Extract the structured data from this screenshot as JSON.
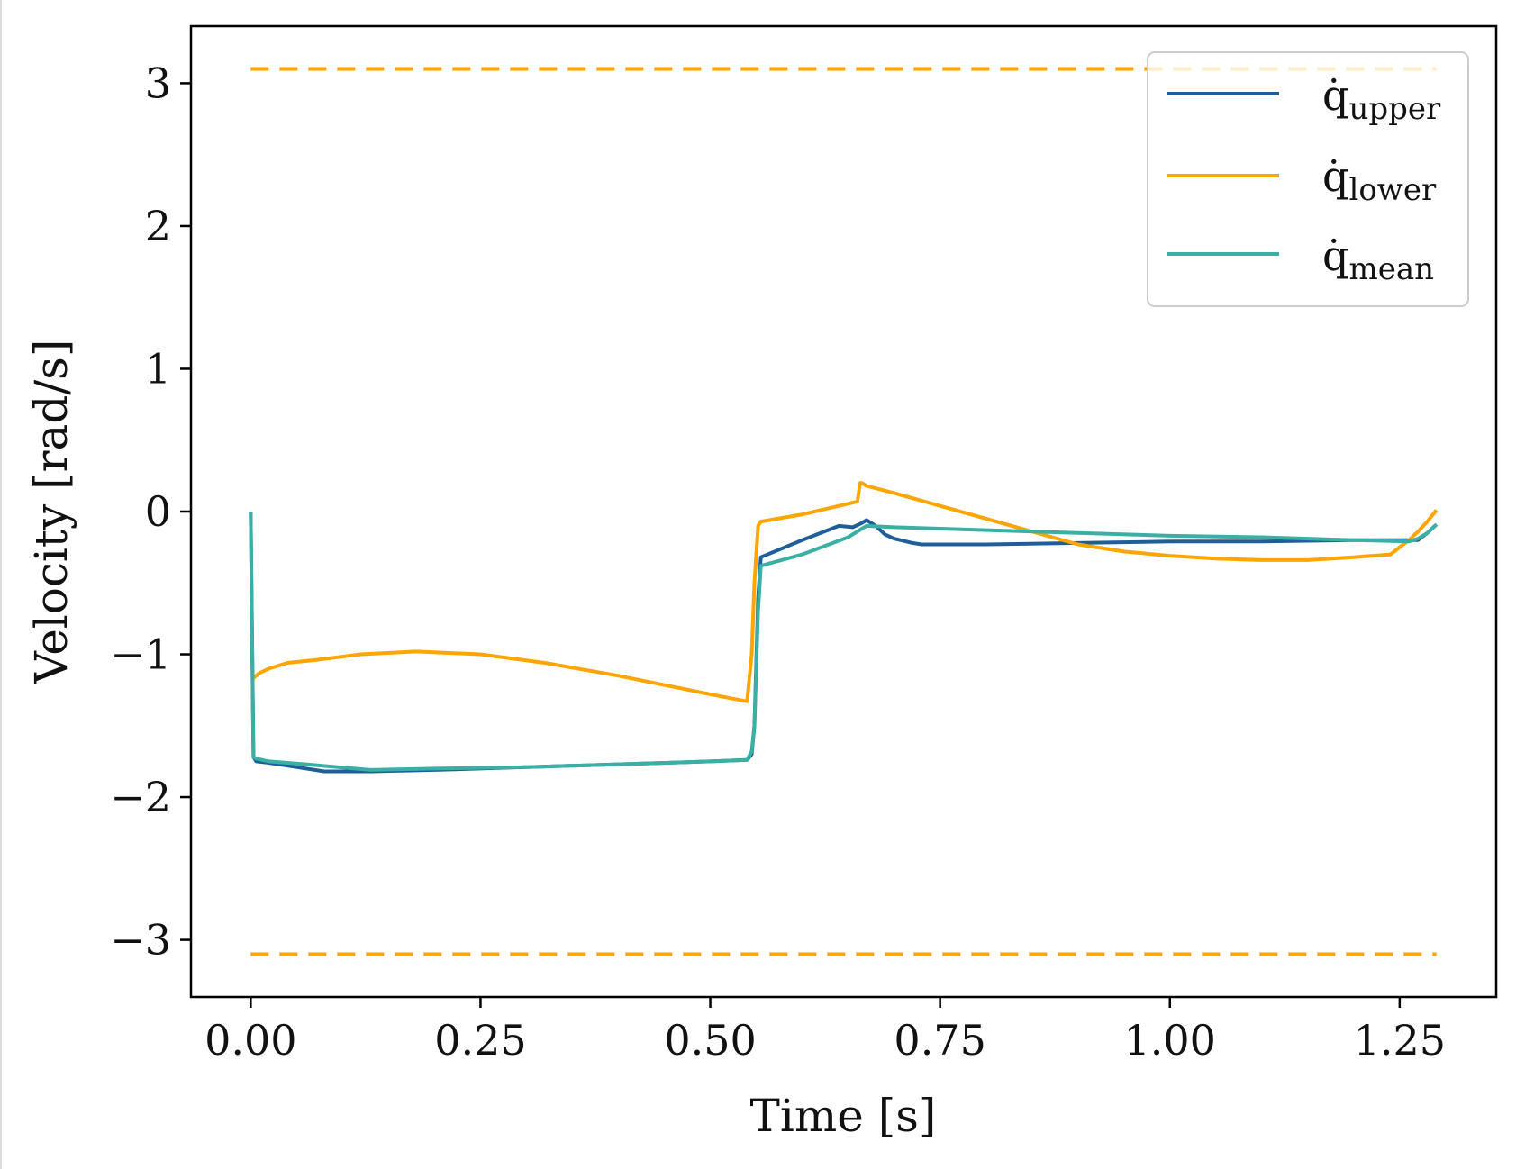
{
  "chart_data": {
    "type": "line",
    "title": "",
    "xlabel": "Time [s]",
    "ylabel": "Velocity [rad/s]",
    "xlim": [
      -0.065,
      1.355
    ],
    "ylim": [
      -3.4,
      3.4
    ],
    "xticks": [
      0.0,
      0.25,
      0.5,
      0.75,
      1.0,
      1.25
    ],
    "xtick_labels": [
      "0.00",
      "0.25",
      "0.50",
      "0.75",
      "1.00",
      "1.25"
    ],
    "yticks": [
      -3,
      -2,
      -1,
      0,
      1,
      2,
      3
    ],
    "ytick_labels": [
      "−3",
      "−2",
      "−1",
      "0",
      "1",
      "2",
      "3"
    ],
    "grid": false,
    "legend_position": "top-right",
    "colors": {
      "upper": "#1f5f99",
      "lower": "#ffa500",
      "mean": "#3aafa3",
      "limit": "#ffa500"
    },
    "limits": {
      "upper": 3.1,
      "lower": -3.1,
      "x_start": 0.0,
      "x_end": 1.29
    },
    "series": [
      {
        "name": "q̇",
        "subscript": "upper",
        "x": [
          0.0,
          0.003,
          0.006,
          0.02,
          0.04,
          0.08,
          0.13,
          0.2,
          0.3,
          0.4,
          0.5,
          0.54,
          0.545,
          0.548,
          0.552,
          0.555,
          0.6,
          0.64,
          0.655,
          0.665,
          0.67,
          0.68,
          0.69,
          0.7,
          0.72,
          0.73,
          0.8,
          0.9,
          1.0,
          1.1,
          1.2,
          1.27,
          1.28,
          1.29
        ],
        "y": [
          0.0,
          -1.72,
          -1.75,
          -1.76,
          -1.78,
          -1.82,
          -1.82,
          -1.81,
          -1.79,
          -1.77,
          -1.75,
          -1.74,
          -1.7,
          -1.5,
          -0.6,
          -0.32,
          -0.2,
          -0.1,
          -0.11,
          -0.08,
          -0.06,
          -0.1,
          -0.16,
          -0.19,
          -0.22,
          -0.23,
          -0.23,
          -0.22,
          -0.21,
          -0.21,
          -0.2,
          -0.2,
          -0.15,
          -0.09
        ]
      },
      {
        "name": "q̇",
        "subscript": "lower",
        "x": [
          0.002,
          0.01,
          0.02,
          0.04,
          0.07,
          0.12,
          0.18,
          0.25,
          0.32,
          0.4,
          0.5,
          0.54,
          0.545,
          0.548,
          0.552,
          0.555,
          0.6,
          0.66,
          0.663,
          0.665,
          0.67,
          0.7,
          0.75,
          0.8,
          0.85,
          0.9,
          0.95,
          1.0,
          1.05,
          1.1,
          1.15,
          1.2,
          1.24,
          1.26,
          1.27,
          1.28,
          1.29
        ],
        "y": [
          -1.17,
          -1.13,
          -1.1,
          -1.06,
          -1.04,
          -1.0,
          -0.98,
          -1.0,
          -1.06,
          -1.15,
          -1.28,
          -1.33,
          -1.0,
          -0.5,
          -0.1,
          -0.07,
          -0.02,
          0.07,
          0.2,
          0.2,
          0.18,
          0.13,
          0.04,
          -0.05,
          -0.14,
          -0.23,
          -0.28,
          -0.31,
          -0.33,
          -0.34,
          -0.34,
          -0.32,
          -0.3,
          -0.2,
          -0.14,
          -0.07,
          0.01
        ]
      },
      {
        "name": "q̇",
        "subscript": "mean",
        "x": [
          0.0,
          0.003,
          0.006,
          0.02,
          0.06,
          0.13,
          0.2,
          0.3,
          0.4,
          0.5,
          0.54,
          0.545,
          0.548,
          0.552,
          0.555,
          0.6,
          0.65,
          0.665,
          0.67,
          0.7,
          0.8,
          0.9,
          1.0,
          1.1,
          1.2,
          1.26,
          1.27,
          1.28,
          1.29
        ],
        "y": [
          0.0,
          -1.72,
          -1.73,
          -1.75,
          -1.77,
          -1.81,
          -1.8,
          -1.79,
          -1.77,
          -1.75,
          -1.74,
          -1.68,
          -1.5,
          -0.7,
          -0.38,
          -0.3,
          -0.18,
          -0.12,
          -0.1,
          -0.11,
          -0.13,
          -0.15,
          -0.17,
          -0.18,
          -0.2,
          -0.21,
          -0.19,
          -0.15,
          -0.09
        ]
      }
    ]
  }
}
